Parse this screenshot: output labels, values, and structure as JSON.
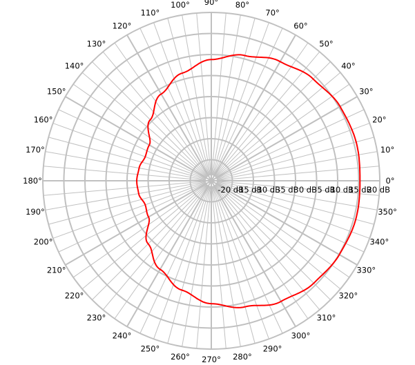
{
  "chart_data": {
    "type": "polar",
    "title": "",
    "angle_unit": "°",
    "angle_tick_labels": [
      "0°",
      "10°",
      "20°",
      "30°",
      "40°",
      "50°",
      "60°",
      "70°",
      "80°",
      "90°",
      "100°",
      "110°",
      "120°",
      "130°",
      "140°",
      "150°",
      "160°",
      "170°",
      "180°",
      "190°",
      "200°",
      "210°",
      "220°",
      "230°",
      "240°",
      "250°",
      "260°",
      "270°",
      "280°",
      "290°",
      "300°",
      "310°",
      "320°",
      "330°",
      "340°",
      "350°"
    ],
    "radial_tick_labels": [
      "-20 dB",
      "-15 dB",
      "-10 dB",
      "-5 dB",
      "0 dB",
      "5 dB",
      "10 dB",
      "15 dB",
      "20 dB"
    ],
    "radial_range": [
      -20,
      20
    ],
    "grid": true,
    "grid_color": "#c0c0c0",
    "series": [
      {
        "color": "#ff0000",
        "angles_deg": [
          0,
          15,
          30,
          45,
          60,
          75,
          90,
          105,
          120,
          135,
          150,
          160,
          170,
          180,
          190,
          200,
          210,
          225,
          240,
          255,
          270,
          285,
          300,
          315,
          330,
          345
        ],
        "values_db": [
          15.3,
          15.6,
          15.3,
          14.2,
          12.7,
          10.8,
          8.8,
          6.5,
          3.8,
          0.5,
          -3.0,
          -3.3,
          -2.6,
          -2.3,
          -2.5,
          -3.3,
          -2.8,
          1.2,
          4.3,
          6.9,
          9.2,
          11.0,
          13.1,
          14.4,
          15.1,
          15.5
        ]
      }
    ]
  }
}
